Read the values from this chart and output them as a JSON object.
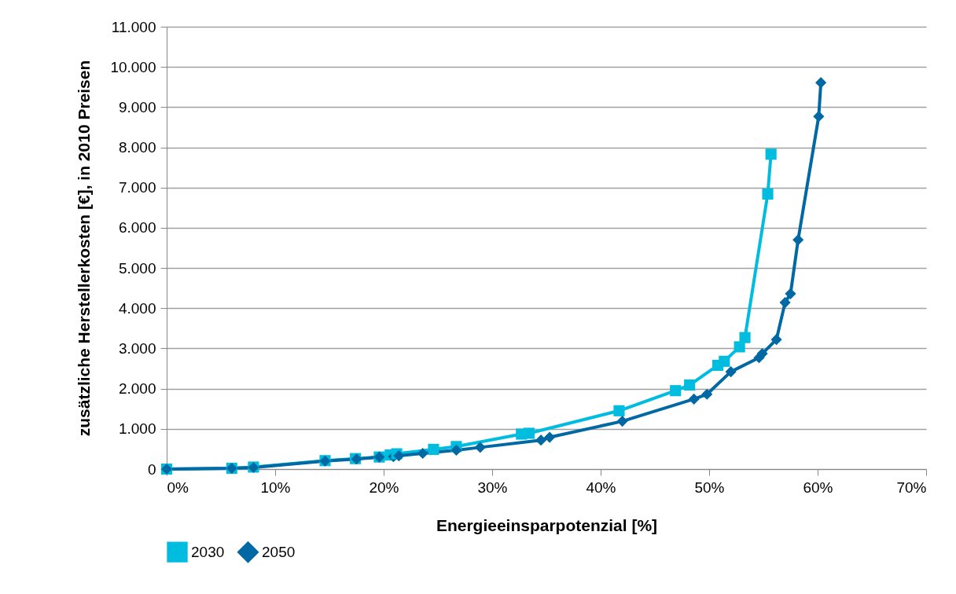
{
  "chart_data": {
    "type": "line",
    "xlabel": "Energieeinsparpotenzial [%]",
    "ylabel": "zusätzliche Herstellerkosten [€], in 2010 Preisen",
    "xlim": [
      0,
      70
    ],
    "xticks": [
      {
        "value": 0,
        "label": "0%"
      },
      {
        "value": 10,
        "label": "10%"
      },
      {
        "value": 20,
        "label": "20%"
      },
      {
        "value": 30,
        "label": "30%"
      },
      {
        "value": 40,
        "label": "40%"
      },
      {
        "value": 50,
        "label": "50%"
      },
      {
        "value": 60,
        "label": "60%"
      },
      {
        "value": 70,
        "label": "70%"
      }
    ],
    "ylim": [
      0,
      11000
    ],
    "yticks": [
      0,
      {
        "value": 1000,
        "label": "1.000"
      },
      {
        "value": 2000,
        "label": "2.000"
      },
      {
        "value": 3000,
        "label": "3.000"
      },
      {
        "value": 4000,
        "label": "4.000"
      },
      {
        "value": 5000,
        "label": "5.000"
      },
      {
        "value": 6000,
        "label": "6.000"
      },
      {
        "value": 7000,
        "label": "7.000"
      },
      {
        "value": 8000,
        "label": "8.000"
      },
      {
        "value": 9000,
        "label": "9.000"
      },
      {
        "value": 10000,
        "label": "10.000"
      },
      {
        "value": 11000,
        "label": "11.000"
      }
    ],
    "grid": "y",
    "legend": "bottom",
    "series": [
      {
        "name": "2030",
        "color": "#00bde0",
        "marker": "square",
        "x": [
          0,
          6.0,
          8.0,
          14.6,
          17.4,
          19.6,
          20.6,
          21.2,
          24.6,
          26.7,
          32.7,
          33.4,
          41.7,
          46.9,
          48.2,
          50.8,
          51.4,
          52.8,
          53.3,
          55.4,
          55.7
        ],
        "values": [
          0,
          20,
          50,
          210,
          260,
          300,
          350,
          380,
          490,
          560,
          870,
          890,
          1450,
          1950,
          2090,
          2580,
          2680,
          3040,
          3270,
          6840,
          7830
        ]
      },
      {
        "name": "2050",
        "color": "#0069a4",
        "marker": "diamond",
        "x": [
          0,
          6.0,
          8.0,
          14.6,
          17.5,
          19.6,
          20.9,
          21.4,
          23.6,
          26.7,
          28.9,
          34.5,
          35.3,
          42.0,
          48.6,
          49.8,
          52.0,
          54.6,
          54.9,
          56.2,
          57.0,
          57.5,
          58.2,
          60.1,
          60.3
        ],
        "values": [
          0,
          20,
          40,
          200,
          250,
          300,
          310,
          330,
          390,
          470,
          540,
          720,
          790,
          1190,
          1740,
          1860,
          2420,
          2770,
          2870,
          3220,
          4140,
          4360,
          5700,
          8770,
          9610
        ]
      }
    ]
  }
}
